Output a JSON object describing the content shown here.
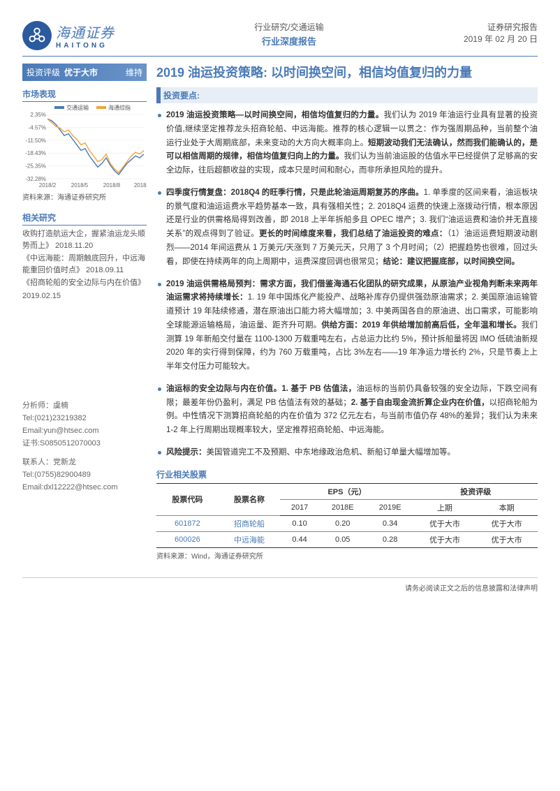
{
  "brand": {
    "cn": "海通证券",
    "en": "HAITONG"
  },
  "header": {
    "center1": "行业研究/交通运输",
    "center2": "行业深度报告",
    "right1": "证券研究报告",
    "right2": "2019 年 02 月 20 日"
  },
  "rating": {
    "label": "投资评级",
    "value": "优于大市",
    "action": "维持"
  },
  "market": {
    "h": "市场表现",
    "src": "资料来源：海通证券研究所"
  },
  "chart": {
    "type": "line",
    "width": 178,
    "height": 120,
    "legend": [
      "交通运输",
      "海通综指"
    ],
    "legend_colors": [
      "#4a7ab8",
      "#f2a33a"
    ],
    "x_labels": [
      "2018/2",
      "2018/5",
      "2018/8",
      "2018/11"
    ],
    "y_labels": [
      "2.35%",
      "-4.57%",
      "-11.50%",
      "-18.43%",
      "-25.35%",
      "-32.28%"
    ],
    "ylim": [
      -32.28,
      2.35
    ],
    "series": [
      {
        "color": "#4a7ab8",
        "width": 1.4,
        "points": [
          0,
          -1,
          -3,
          -6,
          -9,
          -8,
          -11,
          -14,
          -17,
          -16,
          -20,
          -23,
          -26,
          -24,
          -21,
          -25,
          -28,
          -30,
          -27,
          -24,
          -22,
          -20,
          -21,
          -19
        ]
      },
      {
        "color": "#f2a33a",
        "width": 1.4,
        "points": [
          0,
          -2,
          -4,
          -5,
          -7,
          -6,
          -9,
          -11,
          -14,
          -13,
          -17,
          -20,
          -23,
          -22,
          -19,
          -24,
          -27,
          -29,
          -26,
          -23,
          -20,
          -18,
          -19,
          -17
        ]
      }
    ],
    "grid_color": "#e5e5e5",
    "bg": "#ffffff",
    "axis_color": "#999",
    "label_fontsize": 8
  },
  "related": {
    "h": "相关研究",
    "items": [
      "收购打造航运大企，握紧油运龙头顺势而上》 2018.11.20",
      "《中远海能：周期触底回升，中远海能重回价值时点》 2018.09.11",
      "《招商轮船的安全边际与内在价值》",
      "2019.02.15"
    ]
  },
  "contact": {
    "a_name": "分析师：虞楠",
    "a_tel": "Tel:(021)23219382",
    "a_email": "Email:yun@htsec.com",
    "a_cert": "证书:S0850512070003",
    "b_name": "联系人：党新龙",
    "b_tel": "Tel:(0755)82900489",
    "b_email": "Email:dxl12222@htsec.com"
  },
  "title": "2019 油运投资策略: 以时间换空间，相信均值复归的力量",
  "section": "投资要点:",
  "bullets": [
    "<b>2019 油运投资策略—以时间换空间，相信均值复归的力量。</b>我们认为 2019 年油运行业具有显著的投资价值,继续坚定推荐龙头招商轮船、中远海能。推荐的核心逻辑一以贯之：作为强周期品种，当前整个油运行业处于大周期底部，未来变动的大方向大概率向上。<b>短期波动我们无法确认，然而我们能确认的，是可以相信周期的规律，相信均值复归向上的力量。</b>我们认为当前油运股的估值水平已经提供了足够高的安全边际，往后超额收益的实现，成本只是时间和耐心，而非所承担风险的提升。",
    "<b>四季度行情复盘：2018Q4 的旺季行情，只是此轮油运周期复苏的序曲。</b>1. 单季度的区间来看，油运板块的景气度和油运运费水平趋势基本一致，具有强相关性；2. 2018Q4 运费的快速上涨拨动行情，根本原因还是行业的供需格局得到改善，即 2018 上半年拆船多且 OPEC 增产；3. 我们“油运运费和油价并无直接关系”的观点得到了验证。<b>更长的时间维度来看，我们总结了油运投资的难点：</b>（1）油运运费短期波动剧烈——2014 年间运费从 1 万美元/天涨到 7 万美元天，只用了 3 个月时间；（2）把握趋势也很难，回过头看，即使在持续两年的向上周期中，运费深度回调也很常见；<b>结论：建议把握底部，以时间换空间。</b>",
    "<b>2019 油运供需格局预判：需求方面，我们借鉴海通石化团队的研究成果，从原油产业视角判断未来两年油运需求将持续增长：</b>1. 19 年中国炼化产能投产、战略补库存仍提供强劲原油需求；2. 美国原油运输管道预计 19 年陆续修通，潜在原油出口能力将大幅增加；3. 中美两国各自的原油进、出口需求，可能影响全球能源运输格局，油运量、距齐升可期。<b>供给方面：2019 年供给增加前高后低，全年温和增长。</b>我们测算 19 年新船交付量在 1100-1300 万载重吨左右，占总运力比约 5%，预计拆船量将因 IMO 低硫油新规 2020 年的实行得到保障，约为 760 万载重吨，占比 3%左右——19 年净运力增长约 2%，只是节奏上上半年交付压力可能较大。",
    "<b>油运标的安全边际与内在价值。1. 基于 PB 估值法，</b>油运标的当前仍具备较强的安全边际，下跌空间有限；最差年份仍盈利，满足 PB 估值法有效的基础；<b>2. 基于自由现金流折算企业内在价值，</b>以招商轮船为例。中性情况下测算招商轮船的内在价值为 372 亿元左右，与当前市值仍存 48%的差异；我们认为未来 1-2 年上行周期出现概率较大，坚定推荐招商轮船、中远海能。",
    "<b>风险提示：</b>美国管道完工不及预期、中东地缘政治危机、新船订单量大幅增加等。"
  ],
  "stocks": {
    "h": "行业相关股票",
    "head1": [
      "股票代码",
      "股票名称",
      "EPS（元）",
      "投资评级"
    ],
    "head2": [
      "2017",
      "2018E",
      "2019E",
      "上期",
      "本期"
    ],
    "rows": [
      {
        "code": "601872",
        "name": "招商轮船",
        "eps": [
          "0.10",
          "0.20",
          "0.34"
        ],
        "rating": [
          "优于大市",
          "优于大市"
        ]
      },
      {
        "code": "600026",
        "name": "中远海能",
        "eps": [
          "0.44",
          "0.05",
          "0.28"
        ],
        "rating": [
          "优于大市",
          "优于大市"
        ]
      }
    ],
    "src": "资料来源：Wind，海通证券研究所"
  },
  "footer": "请务必阅读正文之后的信息披露和法律声明"
}
